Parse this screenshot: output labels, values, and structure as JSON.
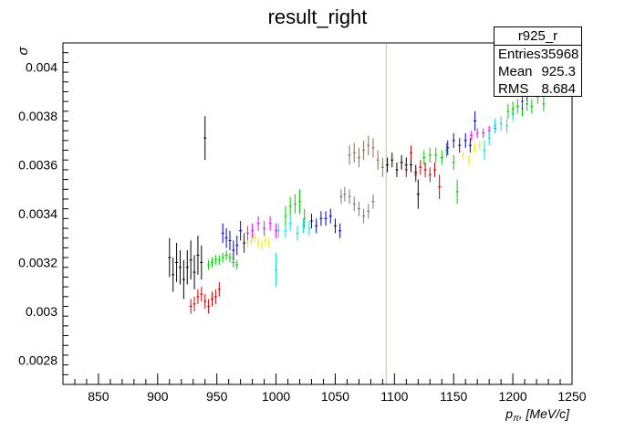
{
  "chart_data": {
    "type": "scatter",
    "title": "result_right",
    "ylabel": "σ",
    "xlabel_main": "p",
    "xlabel_sub": "π",
    "xlabel_unit": ", [MeV/c]",
    "xlim": [
      820,
      1250
    ],
    "ylim": [
      0.0027,
      0.0041
    ],
    "xticks": [
      {
        "v": 850,
        "label": "850"
      },
      {
        "v": 900,
        "label": "900"
      },
      {
        "v": 950,
        "label": "950"
      },
      {
        "v": 1000,
        "label": "1000"
      },
      {
        "v": 1050,
        "label": "1050"
      },
      {
        "v": 1100,
        "label": "1100"
      },
      {
        "v": 1150,
        "label": "1150"
      },
      {
        "v": 1200,
        "label": "1200"
      },
      {
        "v": 1250,
        "label": "1250"
      }
    ],
    "yticks": [
      {
        "v": 0.0028,
        "label": "0.0028"
      },
      {
        "v": 0.003,
        "label": "0.003"
      },
      {
        "v": 0.0032,
        "label": "0.0032"
      },
      {
        "v": 0.0034,
        "label": "0.0034"
      },
      {
        "v": 0.0036,
        "label": "0.0036"
      },
      {
        "v": 0.0038,
        "label": "0.0038"
      },
      {
        "v": 0.004,
        "label": "0.004"
      }
    ],
    "vertical_line_x": 1093,
    "colors": {
      "black": "#000000",
      "red": "#cc0000",
      "green": "#00cc00",
      "blue": "#0000cc",
      "magenta": "#ff00ff",
      "cyan": "#00e0e0",
      "yellow": "#eeee00",
      "gray": "#777777",
      "brown": "#8b6e4e",
      "navy": "#333399",
      "vline": "#c8c0a0"
    },
    "series": [
      {
        "color": "black",
        "points": [
          [
            910,
            0.00322,
            8e-05
          ],
          [
            913,
            0.00315,
            7e-05
          ],
          [
            916,
            0.0032,
            8e-05
          ],
          [
            919,
            0.00318,
            7e-05
          ],
          [
            922,
            0.00313,
            8e-05
          ],
          [
            925,
            0.00318,
            7e-05
          ],
          [
            928,
            0.00321,
            8e-05
          ],
          [
            931,
            0.00316,
            7e-05
          ],
          [
            934,
            0.00323,
            8e-05
          ],
          [
            937,
            0.0032,
            7e-05
          ],
          [
            940,
            0.00371,
            9e-05
          ]
        ]
      },
      {
        "color": "red",
        "points": [
          [
            928,
            0.00302,
            3e-05
          ],
          [
            931,
            0.00303,
            3e-05
          ],
          [
            934,
            0.00306,
            3e-05
          ],
          [
            937,
            0.00307,
            3e-05
          ],
          [
            940,
            0.00304,
            3e-05
          ],
          [
            943,
            0.00302,
            3e-05
          ],
          [
            946,
            0.00305,
            3e-05
          ],
          [
            949,
            0.00306,
            3e-05
          ],
          [
            952,
            0.00309,
            3e-05
          ]
        ]
      },
      {
        "color": "green",
        "points": [
          [
            943,
            0.00319,
            2e-05
          ],
          [
            946,
            0.0032,
            2e-05
          ],
          [
            949,
            0.00321,
            2e-05
          ],
          [
            952,
            0.00321,
            2e-05
          ],
          [
            955,
            0.00322,
            2e-05
          ],
          [
            958,
            0.00323,
            2e-05
          ],
          [
            961,
            0.00322,
            2e-05
          ],
          [
            964,
            0.0032,
            2e-05
          ],
          [
            967,
            0.00319,
            2e-05
          ]
        ]
      },
      {
        "color": "blue",
        "points": [
          [
            955,
            0.00332,
            4e-05
          ],
          [
            958,
            0.0033,
            4e-05
          ],
          [
            961,
            0.00329,
            4e-05
          ],
          [
            964,
            0.00325,
            4e-05
          ],
          [
            967,
            0.00327,
            4e-05
          ],
          [
            970,
            0.00333,
            4e-05
          ],
          [
            973,
            0.00328,
            4e-05
          ]
        ]
      },
      {
        "color": "yellow",
        "points": [
          [
            976,
            0.00328,
            2e-05
          ],
          [
            979,
            0.00329,
            2e-05
          ],
          [
            982,
            0.0033,
            2e-05
          ],
          [
            985,
            0.00328,
            2e-05
          ],
          [
            988,
            0.00327,
            2e-05
          ],
          [
            991,
            0.00329,
            2e-05
          ],
          [
            994,
            0.00328,
            2e-05
          ]
        ]
      },
      {
        "color": "magenta",
        "points": [
          [
            976,
            0.00332,
            3e-05
          ],
          [
            980,
            0.00333,
            3e-05
          ],
          [
            985,
            0.00336,
            3e-05
          ],
          [
            990,
            0.00334,
            3e-05
          ],
          [
            995,
            0.00336,
            3e-05
          ],
          [
            1000,
            0.00333,
            3e-05
          ]
        ]
      },
      {
        "color": "cyan",
        "points": [
          [
            1000,
            0.00317,
            7e-05
          ],
          [
            1002,
            0.00333,
            3e-05
          ],
          [
            1008,
            0.00333,
            3e-05
          ],
          [
            1012,
            0.00336,
            3e-05
          ],
          [
            1018,
            0.00332,
            3e-05
          ],
          [
            1023,
            0.00335,
            3e-05
          ],
          [
            1028,
            0.00334,
            3e-05
          ]
        ]
      },
      {
        "color": "green",
        "points": [
          [
            1008,
            0.00339,
            4e-05
          ],
          [
            1012,
            0.00343,
            4e-05
          ],
          [
            1016,
            0.00344,
            4e-05
          ],
          [
            1020,
            0.00345,
            5e-05
          ],
          [
            1024,
            0.00338,
            4e-05
          ]
        ]
      },
      {
        "color": "blue",
        "points": [
          [
            1030,
            0.00337,
            3e-05
          ],
          [
            1034,
            0.00335,
            3e-05
          ],
          [
            1038,
            0.00338,
            3e-05
          ],
          [
            1042,
            0.00338,
            3e-05
          ],
          [
            1046,
            0.00339,
            3e-05
          ],
          [
            1050,
            0.00335,
            3e-05
          ],
          [
            1054,
            0.00333,
            3e-05
          ]
        ]
      },
      {
        "color": "gray",
        "points": [
          [
            1055,
            0.00347,
            3e-05
          ],
          [
            1058,
            0.00348,
            3e-05
          ],
          [
            1062,
            0.00347,
            3e-05
          ],
          [
            1066,
            0.00344,
            3e-05
          ],
          [
            1070,
            0.00342,
            3e-05
          ],
          [
            1074,
            0.00339,
            3e-05
          ],
          [
            1078,
            0.00341,
            3e-05
          ],
          [
            1082,
            0.00345,
            3e-05
          ]
        ]
      },
      {
        "color": "brown",
        "points": [
          [
            1062,
            0.00364,
            4e-05
          ],
          [
            1066,
            0.00365,
            4e-05
          ],
          [
            1070,
            0.00363,
            4e-05
          ],
          [
            1074,
            0.00366,
            4e-05
          ],
          [
            1078,
            0.00368,
            4e-05
          ],
          [
            1082,
            0.00367,
            4e-05
          ],
          [
            1086,
            0.00362,
            4e-05
          ],
          [
            1090,
            0.00359,
            4e-05
          ]
        ]
      },
      {
        "color": "black",
        "points": [
          [
            1094,
            0.0036,
            3e-05
          ],
          [
            1098,
            0.00362,
            3e-05
          ],
          [
            1102,
            0.00358,
            3e-05
          ],
          [
            1106,
            0.00361,
            3e-05
          ],
          [
            1110,
            0.0036,
            3e-05
          ],
          [
            1114,
            0.0036,
            3e-05
          ],
          [
            1118,
            0.00357,
            3e-05
          ],
          [
            1120,
            0.00348,
            6e-05
          ]
        ]
      },
      {
        "color": "red",
        "points": [
          [
            1110,
            0.00358,
            3e-05
          ],
          [
            1114,
            0.00365,
            3e-05
          ],
          [
            1118,
            0.00356,
            3e-05
          ],
          [
            1122,
            0.00359,
            3e-05
          ],
          [
            1126,
            0.00358,
            3e-05
          ],
          [
            1130,
            0.00356,
            3e-05
          ],
          [
            1134,
            0.00358,
            3e-05
          ],
          [
            1138,
            0.00351,
            5e-05
          ]
        ]
      },
      {
        "color": "green",
        "points": [
          [
            1125,
            0.00363,
            3e-05
          ],
          [
            1130,
            0.00364,
            3e-05
          ],
          [
            1135,
            0.00364,
            3e-05
          ],
          [
            1140,
            0.00363,
            3e-05
          ],
          [
            1144,
            0.00366,
            3e-05
          ],
          [
            1150,
            0.00361,
            3e-05
          ],
          [
            1153,
            0.00349,
            5e-05
          ]
        ]
      },
      {
        "color": "blue",
        "points": [
          [
            1145,
            0.00367,
            3e-05
          ],
          [
            1150,
            0.0037,
            3e-05
          ],
          [
            1155,
            0.00368,
            3e-05
          ],
          [
            1160,
            0.0037,
            3e-05
          ],
          [
            1164,
            0.00368,
            3e-05
          ],
          [
            1168,
            0.00378,
            4e-05
          ]
        ]
      },
      {
        "color": "yellow",
        "points": [
          [
            1158,
            0.00364,
            2e-05
          ],
          [
            1163,
            0.00362,
            2e-05
          ],
          [
            1168,
            0.00367,
            2e-05
          ],
          [
            1172,
            0.00368,
            2e-05
          ],
          [
            1176,
            0.00366,
            2e-05
          ]
        ]
      },
      {
        "color": "magenta",
        "points": [
          [
            1165,
            0.00372,
            2e-05
          ],
          [
            1170,
            0.00373,
            2e-05
          ],
          [
            1175,
            0.00373,
            2e-05
          ],
          [
            1180,
            0.00374,
            2e-05
          ],
          [
            1185,
            0.00375,
            2e-05
          ]
        ]
      },
      {
        "color": "cyan",
        "points": [
          [
            1176,
            0.00366,
            4e-05
          ],
          [
            1180,
            0.00371,
            3e-05
          ],
          [
            1185,
            0.00376,
            3e-05
          ],
          [
            1190,
            0.00377,
            3e-05
          ],
          [
            1195,
            0.00376,
            3e-05
          ],
          [
            1200,
            0.00381,
            3e-05
          ]
        ]
      },
      {
        "color": "green",
        "points": [
          [
            1196,
            0.00382,
            3e-05
          ],
          [
            1200,
            0.00383,
            3e-05
          ],
          [
            1204,
            0.00384,
            3e-05
          ],
          [
            1208,
            0.00383,
            3e-05
          ],
          [
            1212,
            0.00385,
            3e-05
          ],
          [
            1216,
            0.00384,
            3e-05
          ],
          [
            1221,
            0.00388,
            3e-05
          ],
          [
            1226,
            0.00385,
            3e-05
          ]
        ]
      },
      {
        "color": "navy",
        "points": [
          [
            1208,
            0.00386,
            3e-05
          ],
          [
            1212,
            0.00389,
            3e-05
          ],
          [
            1216,
            0.00392,
            3e-05
          ],
          [
            1220,
            0.00394,
            3e-05
          ],
          [
            1224,
            0.00397,
            3e-05
          ],
          [
            1228,
            0.00396,
            3e-05
          ],
          [
            1230,
            0.004,
            3e-05
          ],
          [
            1234,
            0.00401,
            3e-05
          ],
          [
            1238,
            0.00403,
            3e-05
          ]
        ]
      },
      {
        "color": "gray",
        "points": [
          [
            1216,
            0.00398,
            3e-05
          ],
          [
            1220,
            0.004,
            3e-05
          ],
          [
            1225,
            0.004,
            3e-05
          ],
          [
            1229,
            0.00398,
            3e-05
          ]
        ]
      }
    ]
  },
  "stats": {
    "title": "r925_r",
    "rows": [
      {
        "label": "Entries",
        "value": "35968"
      },
      {
        "label": "Mean",
        "value": "925.3"
      },
      {
        "label": "RMS",
        "value": "8.684"
      }
    ]
  }
}
